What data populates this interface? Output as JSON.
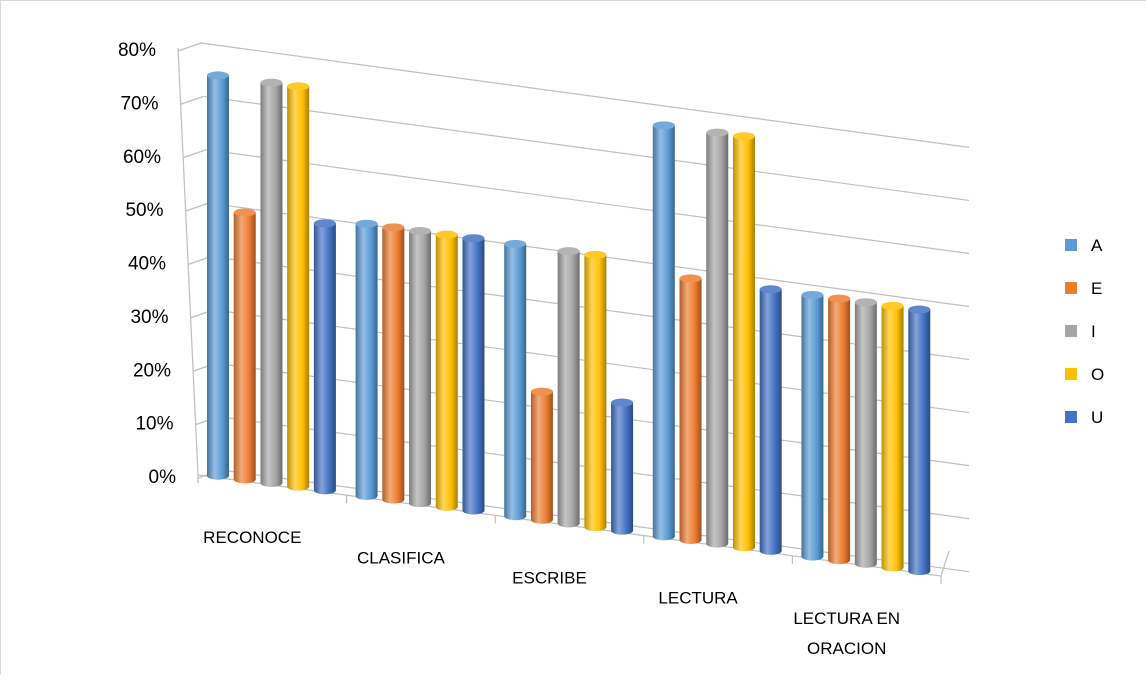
{
  "chart_data": {
    "type": "bar",
    "style": "3d-cylinder",
    "title": "",
    "xlabel": "",
    "ylabel": "",
    "ylim": [
      0,
      0.8
    ],
    "yticks": [
      "0%",
      "10%",
      "20%",
      "30%",
      "40%",
      "50%",
      "60%",
      "70%",
      "80%"
    ],
    "grid": true,
    "legend_position": "right",
    "categories": [
      [
        "RECONOCE"
      ],
      [
        "CLASIFICA"
      ],
      [
        "ESCRIBE"
      ],
      [
        "LECTURA"
      ],
      [
        "LECTURA EN",
        "ORACION"
      ]
    ],
    "series": [
      {
        "name": "A",
        "color": "#5B9BD5",
        "values": [
          0.75,
          0.51,
          0.51,
          0.77,
          0.49
        ]
      },
      {
        "name": "E",
        "color": "#ED7D31",
        "values": [
          0.5,
          0.51,
          0.24,
          0.49,
          0.49
        ]
      },
      {
        "name": "I",
        "color": "#A5A5A5",
        "values": [
          0.75,
          0.51,
          0.51,
          0.77,
          0.49
        ]
      },
      {
        "name": "O",
        "color": "#FFC000",
        "values": [
          0.75,
          0.51,
          0.51,
          0.77,
          0.49
        ]
      },
      {
        "name": "U",
        "color": "#4472C4",
        "values": [
          0.5,
          0.51,
          0.24,
          0.49,
          0.49
        ]
      }
    ]
  }
}
